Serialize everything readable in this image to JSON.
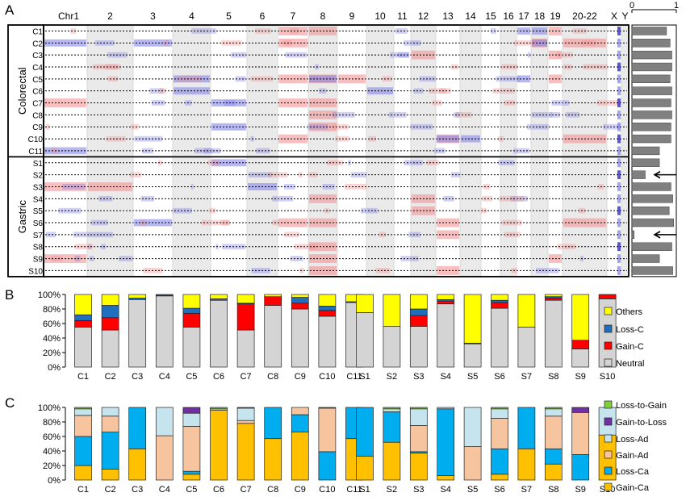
{
  "panel_letters": [
    "A",
    "B",
    "C"
  ],
  "colors": {
    "gain": "#f08a8a",
    "gain_strong": "#e41a1c",
    "loss": "#7c7ce8",
    "loss_strong": "#1010c0",
    "chrom_band": "#d8d8d8",
    "summary_bar": "#808080",
    "others": "#ffff00",
    "loss_c": "#1f6fbf",
    "gain_c": "#ff0000",
    "neutral": "#d4d4d4",
    "loss_to_gain": "#7fd13b",
    "gain_to_loss": "#7030a0",
    "loss_ad": "#c5e4ee",
    "gain_ad": "#f7c4a0",
    "loss_ca": "#00aeef",
    "gain_ca": "#ffc000"
  },
  "chart_data": [
    {
      "type": "heatmap",
      "chromosomes": [
        "Chr1",
        "2",
        "3",
        "4",
        "5",
        "6",
        "7",
        "8",
        "9",
        "10",
        "11",
        "12",
        "13",
        "14",
        "15",
        "16",
        "17",
        "18",
        "19",
        "20-22",
        "X",
        "Y"
      ],
      "groups": [
        "Colorectal",
        "Gastric"
      ],
      "rows": [
        "C1",
        "C2",
        "C3",
        "C4",
        "C5",
        "C6",
        "C7",
        "C8",
        "C9",
        "C10",
        "C11",
        "S1",
        "S2",
        "S3",
        "S4",
        "S5",
        "S6",
        "S7",
        "S8",
        "S9",
        "S10"
      ],
      "side_axis": {
        "ticks": [
          "0",
          "1"
        ],
        "xlim": [
          0,
          1
        ]
      },
      "side_values": [
        0.78,
        0.86,
        0.9,
        0.9,
        0.86,
        0.9,
        0.88,
        0.9,
        0.88,
        0.88,
        0.62,
        0.62,
        0.3,
        0.88,
        0.92,
        0.84,
        0.94,
        0.05,
        0.9,
        0.62,
        0.92
      ],
      "annotations": [
        "arrow at S2",
        "arrow at S7"
      ]
    },
    {
      "type": "bar",
      "stacked": true,
      "categories": [
        "C1",
        "C2",
        "C3",
        "C4",
        "C5",
        "C6",
        "C7",
        "C8",
        "C9",
        "C10",
        "C11",
        "S1",
        "S2",
        "S3",
        "S4",
        "S5",
        "S6",
        "S7",
        "S8",
        "S9",
        "S10"
      ],
      "yticks": [
        "0%",
        "20%",
        "40%",
        "60%",
        "80%",
        "100%"
      ],
      "ylim": [
        0,
        100
      ],
      "legend": "right",
      "series": [
        {
          "name": "Neutral",
          "color_key": "neutral",
          "values": [
            55,
            51,
            93,
            98,
            55,
            92,
            51,
            85,
            80,
            70,
            89,
            75,
            56,
            56,
            87,
            32,
            81,
            55,
            92,
            25,
            94
          ]
        },
        {
          "name": "Gain-C",
          "color_key": "gain_c",
          "values": [
            9,
            17,
            0,
            0,
            19,
            0,
            36,
            12,
            8,
            8,
            0,
            0,
            0,
            15,
            4,
            0,
            8,
            0,
            3,
            12,
            6
          ]
        },
        {
          "name": "Loss-C",
          "color_key": "loss_c",
          "values": [
            8,
            17,
            2,
            1,
            7,
            2,
            1,
            0,
            8,
            6,
            1,
            0,
            0,
            9,
            2,
            1,
            3,
            0,
            2,
            0,
            0
          ]
        },
        {
          "name": "Others",
          "color_key": "others",
          "values": [
            28,
            15,
            5,
            1,
            19,
            6,
            12,
            3,
            4,
            16,
            10,
            25,
            44,
            20,
            7,
            67,
            8,
            45,
            3,
            63,
            0
          ]
        }
      ]
    },
    {
      "type": "bar",
      "stacked": true,
      "categories": [
        "C1",
        "C2",
        "C3",
        "C4",
        "C5",
        "C6",
        "C7",
        "C8",
        "C9",
        "C10",
        "C11",
        "S1",
        "S2",
        "S3",
        "S4",
        "S5",
        "S6",
        "S7",
        "S8",
        "S9",
        "S10"
      ],
      "yticks": [
        "0%",
        "20%",
        "40%",
        "60%",
        "80%",
        "100%"
      ],
      "ylim": [
        0,
        100
      ],
      "legend": "right",
      "series": [
        {
          "name": "Gain-Ca",
          "color_key": "gain_ca",
          "values": [
            20,
            15,
            43,
            0,
            8,
            96,
            78,
            57,
            66,
            0,
            57,
            33,
            52,
            37,
            6,
            0,
            8,
            43,
            22,
            0,
            62
          ]
        },
        {
          "name": "Loss-Ca",
          "color_key": "loss_ca",
          "values": [
            40,
            51,
            57,
            0,
            4,
            0,
            0,
            43,
            24,
            39,
            43,
            67,
            42,
            2,
            92,
            0,
            35,
            57,
            21,
            35,
            0
          ]
        },
        {
          "name": "Gain-Ad",
          "color_key": "gain_ad",
          "values": [
            29,
            22,
            0,
            61,
            62,
            2,
            4,
            0,
            10,
            60,
            0,
            0,
            0,
            36,
            0,
            46,
            42,
            0,
            45,
            58,
            0
          ]
        },
        {
          "name": "Loss-Ad",
          "color_key": "loss_ad",
          "values": [
            9,
            12,
            0,
            39,
            18,
            0,
            17,
            0,
            0,
            0,
            0,
            0,
            4,
            23,
            2,
            54,
            13,
            0,
            10,
            0,
            38
          ]
        },
        {
          "name": "Gain-to-Loss",
          "color_key": "gain_to_loss",
          "values": [
            0,
            0,
            0,
            0,
            8,
            0,
            0,
            0,
            0,
            0,
            0,
            0,
            0,
            0,
            0,
            0,
            0,
            0,
            0,
            7,
            0
          ]
        },
        {
          "name": "Loss-to-Gain",
          "color_key": "loss_to_gain",
          "values": [
            2,
            0,
            0,
            0,
            0,
            2,
            1,
            0,
            0,
            1,
            0,
            0,
            2,
            2,
            0,
            0,
            2,
            0,
            2,
            0,
            0
          ]
        }
      ]
    }
  ]
}
